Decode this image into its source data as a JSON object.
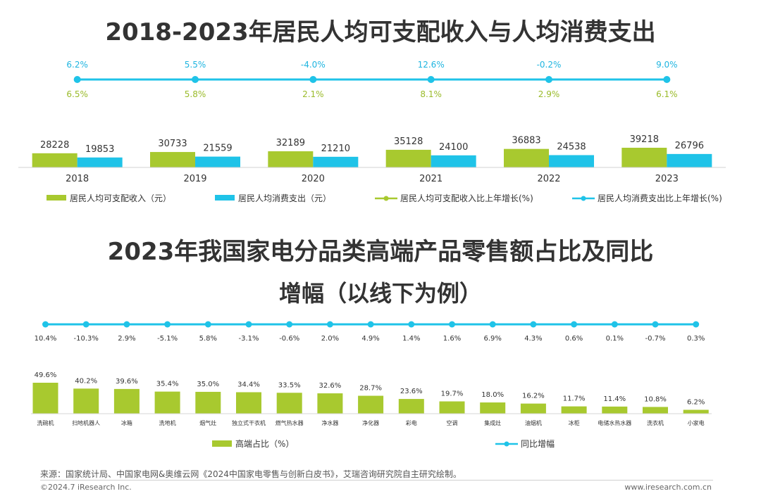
{
  "titles": {
    "chart1": "2018-2023年居民人均可支配收入与人均消费支出",
    "chart2_line1": "2023年我国家电分品类高端产品零售额占比及同比",
    "chart2_line2": "增幅（以线下为例）"
  },
  "footer": {
    "source": "来源：国家统计局、中国家电网&奥维云网《2024中国家电零售与创新白皮书》，艾瑞咨询研究院自主研究绘制。",
    "copyright": "©2024.7 iResearch Inc.",
    "url": "www.iresearch.com.cn"
  },
  "colors": {
    "green": "#a8c92f",
    "blue": "#1fc3e8",
    "growth_green_text": "#9abb2a",
    "growth_blue_text": "#1fb5e0"
  },
  "chart_data": [
    {
      "type": "bar",
      "title": "2018-2023年居民人均可支配收入与人均消费支出",
      "categories": [
        "2018",
        "2019",
        "2020",
        "2021",
        "2022",
        "2023"
      ],
      "series": [
        {
          "name": "居民人均可支配收入（元）",
          "values": [
            28228,
            30733,
            32189,
            35128,
            36883,
            39218
          ],
          "color": "#a8c92f"
        },
        {
          "name": "居民人均消费支出（元）",
          "values": [
            19853,
            21559,
            21210,
            24100,
            24538,
            26796
          ],
          "color": "#1fc3e8"
        }
      ],
      "lines": [
        {
          "name": "居民人均可支配收入比上年增长(%)",
          "labels": [
            "6.5%",
            "5.8%",
            "2.1%",
            "8.1%",
            "2.9%",
            "6.1%"
          ],
          "values": [
            6.5,
            5.8,
            2.1,
            8.1,
            2.9,
            6.1
          ],
          "color": "#a8c92f"
        },
        {
          "name": "居民人均消费支出比上年增长(%)",
          "labels": [
            "6.2%",
            "5.5%",
            "-4.0%",
            "12.6%",
            "-0.2%",
            "9.0%"
          ],
          "values": [
            6.2,
            5.5,
            -4.0,
            12.6,
            -0.2,
            9.0
          ],
          "color": "#1fc3e8"
        }
      ],
      "legend_position": "bottom"
    },
    {
      "type": "bar",
      "title": "2023年我国家电分品类高端产品零售额占比及同比增幅（以线下为例）",
      "categories": [
        "洗碗机",
        "扫地机器人",
        "冰箱",
        "洗地机",
        "烟气灶",
        "独立式干衣机",
        "燃气热水器",
        "净水器",
        "净化器",
        "彩电",
        "空调",
        "集成灶",
        "油烟机",
        "冰柜",
        "电储水热水器",
        "洗衣机",
        "小家电"
      ],
      "series": [
        {
          "name": "高端占比（%）",
          "labels": [
            "49.6%",
            "40.2%",
            "39.6%",
            "35.4%",
            "35.0%",
            "34.4%",
            "33.5%",
            "32.6%",
            "28.7%",
            "23.6%",
            "19.7%",
            "18.0%",
            "16.2%",
            "11.7%",
            "11.4%",
            "10.8%",
            "6.2%"
          ],
          "values": [
            49.6,
            40.2,
            39.6,
            35.4,
            35.0,
            34.4,
            33.5,
            32.6,
            28.7,
            23.6,
            19.7,
            18.0,
            16.2,
            11.7,
            11.4,
            10.8,
            6.2
          ],
          "color": "#a8c92f"
        }
      ],
      "lines": [
        {
          "name": "同比增幅",
          "labels": [
            "10.4%",
            "-10.3%",
            "2.9%",
            "-5.1%",
            "5.8%",
            "-3.1%",
            "-0.6%",
            "2.0%",
            "4.9%",
            "1.4%",
            "1.6%",
            "6.9%",
            "4.3%",
            "0.6%",
            "0.1%",
            "-0.7%",
            "0.3%"
          ],
          "values": [
            10.4,
            -10.3,
            2.9,
            -5.1,
            5.8,
            -3.1,
            -0.6,
            2.0,
            4.9,
            1.4,
            1.6,
            6.9,
            4.3,
            0.6,
            0.1,
            -0.7,
            0.3
          ],
          "color": "#1fc3e8"
        }
      ],
      "legend_position": "bottom"
    }
  ]
}
